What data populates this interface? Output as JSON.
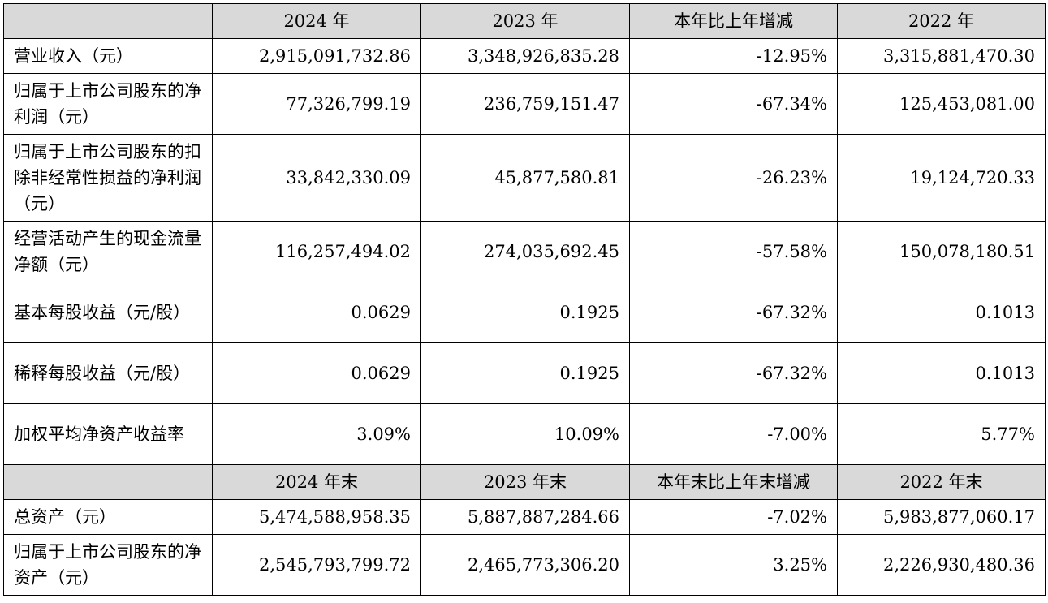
{
  "header1": [
    "2024 年",
    "2023 年",
    "本年比上年增减",
    "2022 年"
  ],
  "rows1": [
    {
      "label": "营业收入（元）",
      "v": [
        "2,915,091,732.86",
        "3,348,926,835.28",
        "-12.95%",
        "3,315,881,470.30"
      ]
    },
    {
      "label": "归属于上市公司股东的净利润（元）",
      "v": [
        "77,326,799.19",
        "236,759,151.47",
        "-67.34%",
        "125,453,081.00"
      ]
    },
    {
      "label": "归属于上市公司股东的扣除非经常性损益的净利润（元）",
      "v": [
        "33,842,330.09",
        "45,877,580.81",
        "-26.23%",
        "19,124,720.33"
      ]
    },
    {
      "label": "经营活动产生的现金流量净额（元）",
      "v": [
        "116,257,494.02",
        "274,035,692.45",
        "-57.58%",
        "150,078,180.51"
      ]
    },
    {
      "label": "基本每股收益（元/股）",
      "v": [
        "0.0629",
        "0.1925",
        "-67.32%",
        "0.1013"
      ]
    },
    {
      "label": "稀释每股收益（元/股）",
      "v": [
        "0.0629",
        "0.1925",
        "-67.32%",
        "0.1013"
      ]
    },
    {
      "label": "加权平均净资产收益率",
      "v": [
        "3.09%",
        "10.09%",
        "-7.00%",
        "5.77%"
      ]
    }
  ],
  "header2": [
    "2024 年末",
    "2023 年末",
    "本年末比上年末增减",
    "2022 年末"
  ],
  "rows2": [
    {
      "label": "总资产（元）",
      "v": [
        "5,474,588,958.35",
        "5,887,887,284.66",
        "-7.02%",
        "5,983,877,060.17"
      ]
    },
    {
      "label": "归属于上市公司股东的净资产（元）",
      "v": [
        "2,545,793,799.72",
        "2,465,773,306.20",
        "3.25%",
        "2,226,930,480.36"
      ]
    }
  ]
}
